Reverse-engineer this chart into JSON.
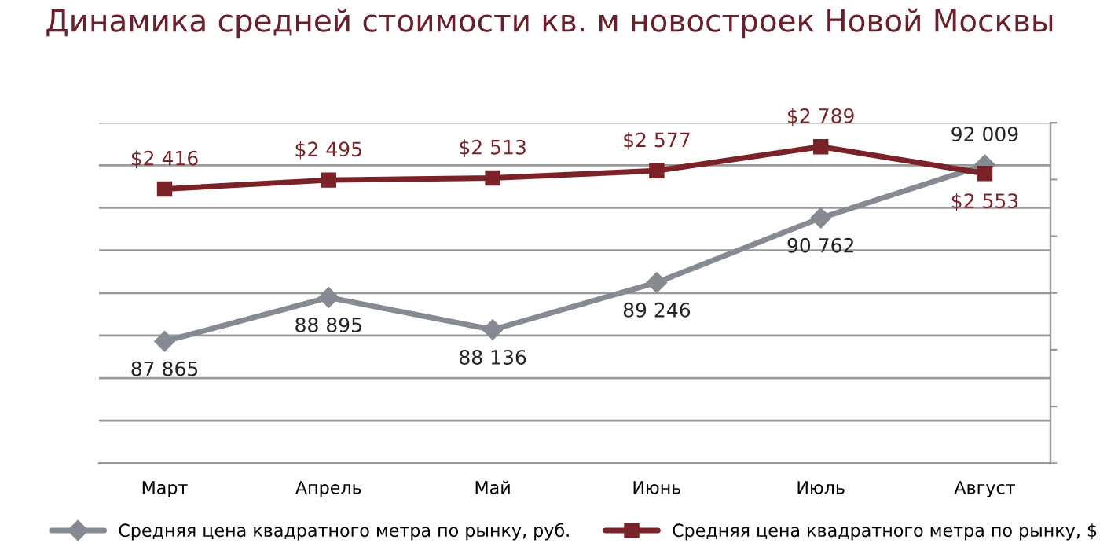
{
  "chart_data": {
    "type": "line",
    "title": "Динамика средней стоимости кв. м новостроек Новой Москвы",
    "categories": [
      "Март",
      "Апрель",
      "Май",
      "Июнь",
      "Июль",
      "Август"
    ],
    "series": [
      {
        "name": "Средняя цена квадратного метра по рынку, руб.",
        "color": "#868a92",
        "marker": "diamond",
        "values": [
          87865,
          88895,
          88136,
          89246,
          90762,
          92009
        ],
        "value_labels": [
          "87 865",
          "88 895",
          "88 136",
          "89 246",
          "90 762",
          "92 009"
        ]
      },
      {
        "name": "Средняя цена квадратного метра по рынку, $",
        "color": "#7a2228",
        "marker": "square",
        "axis": "y2",
        "values": [
          2416,
          2495,
          2513,
          2577,
          2789,
          2553
        ],
        "value_labels": [
          "$2 416",
          "$2 495",
          "$2 513",
          "$2 577",
          "$2 789",
          "$2 553"
        ]
      }
    ],
    "ylim": [
      85000,
      93000
    ],
    "yticks": [
      {
        "value": 85000,
        "label": null
      },
      {
        "value": 86000,
        "label": null
      },
      {
        "value": 87000,
        "label": null
      },
      {
        "value": 88000,
        "label": null
      },
      {
        "value": 89000,
        "label": null
      },
      {
        "value": 90000,
        "label": null
      },
      {
        "value": 91000,
        "label": null
      },
      {
        "value": 92000,
        "label": null
      },
      {
        "value": 93000,
        "label": null
      }
    ],
    "y2lim": [
      0,
      3000
    ],
    "y2ticks": [
      {
        "value": 0,
        "label": null
      },
      {
        "value": 500,
        "label": null
      },
      {
        "value": 1000,
        "label": null
      },
      {
        "value": 1500,
        "label": null
      },
      {
        "value": 2000,
        "label": null
      },
      {
        "value": 2500,
        "label": null
      },
      {
        "value": 3000,
        "label": null
      }
    ],
    "tick_labels": "x",
    "grid": "y",
    "legend": "bottom",
    "line_style": "solid"
  }
}
